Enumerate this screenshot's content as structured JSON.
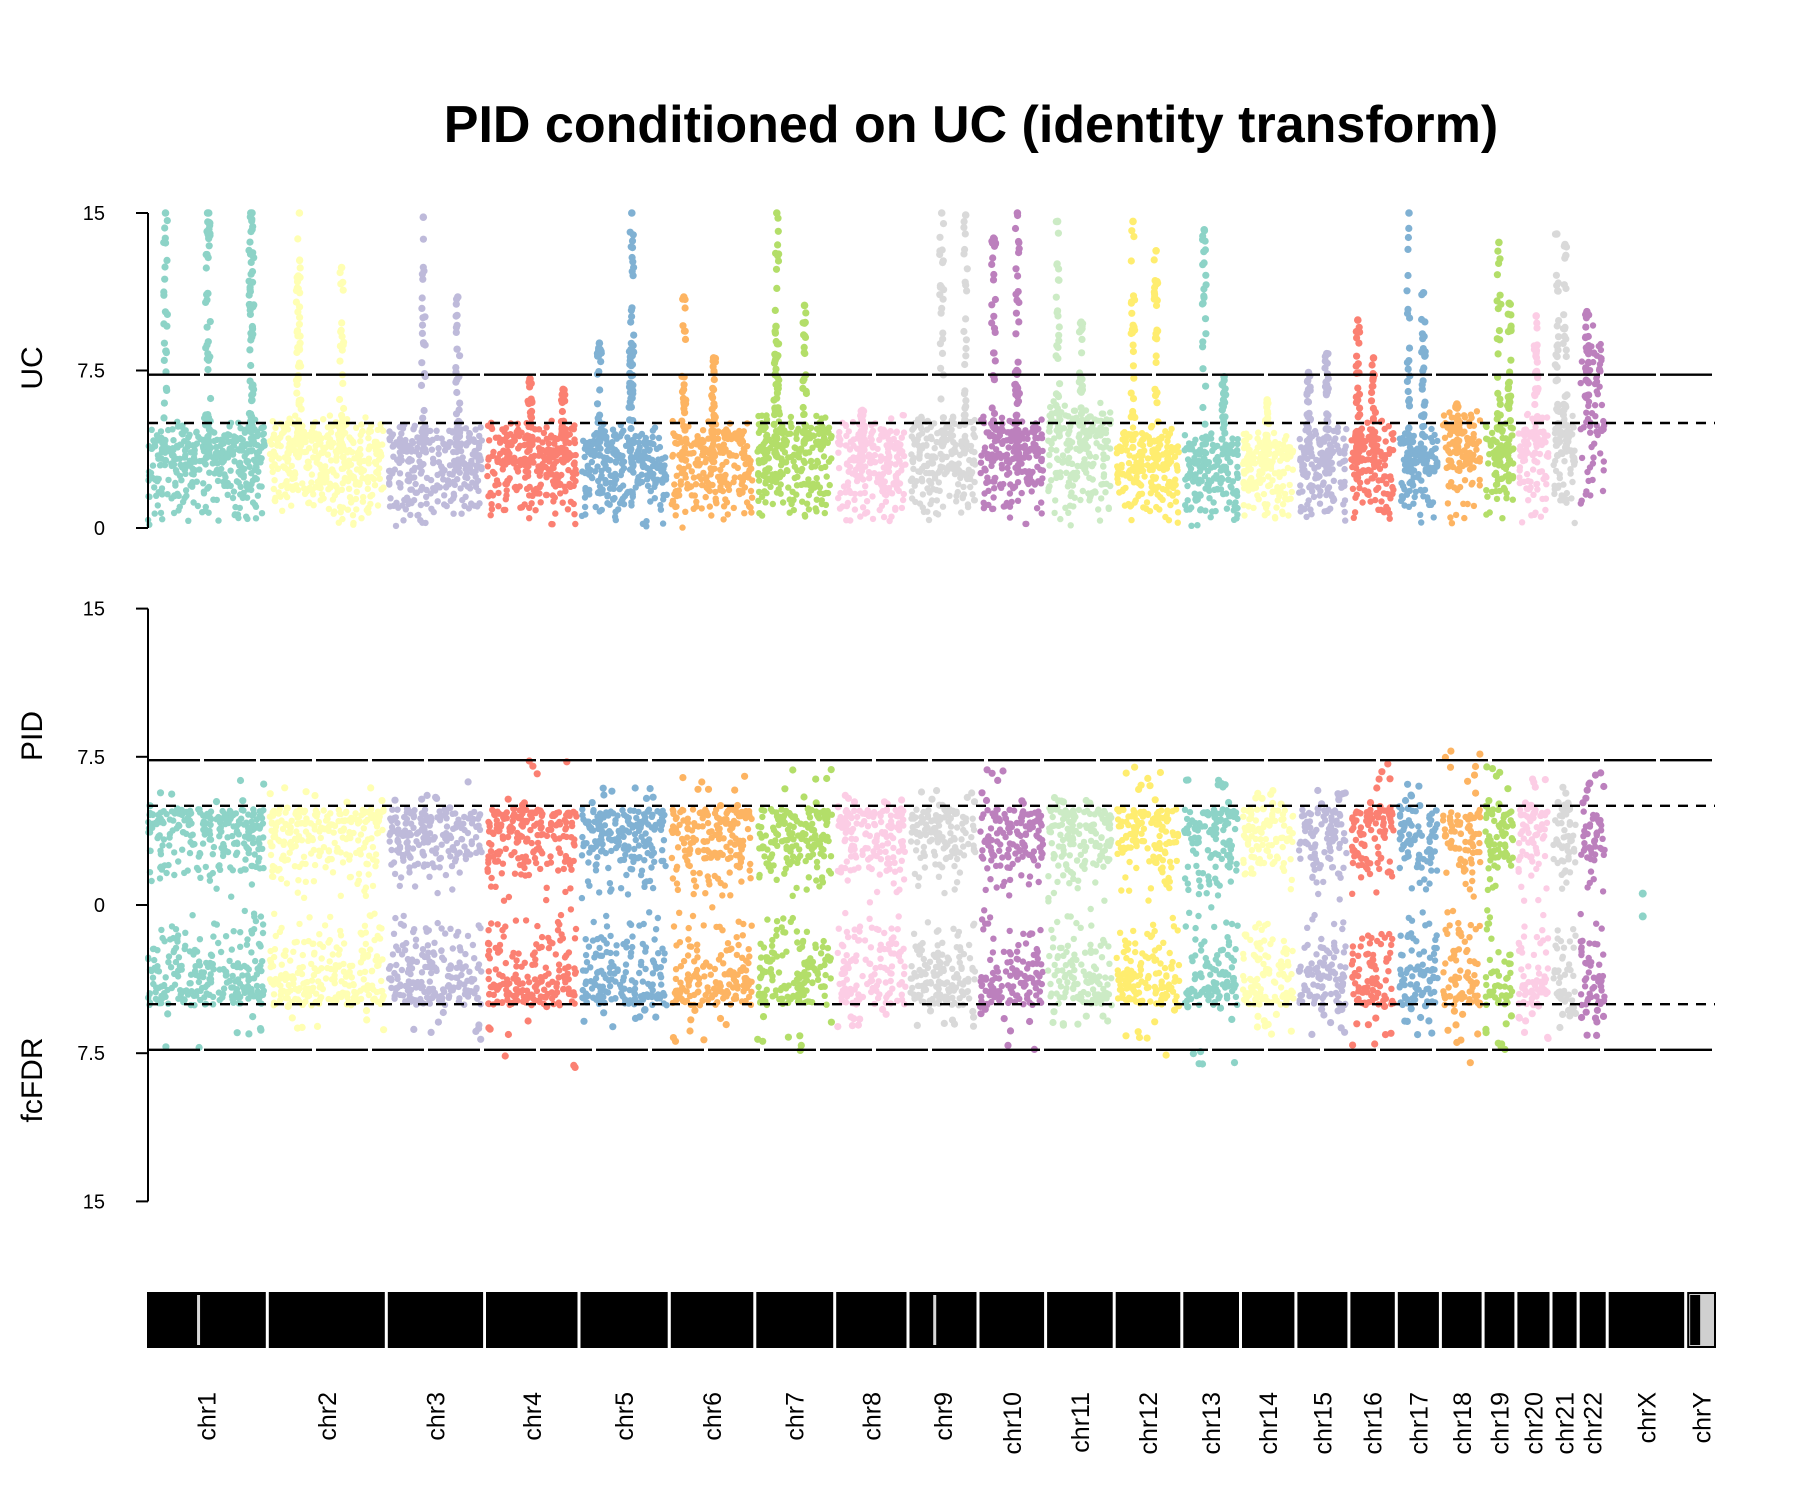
{
  "chart_data": {
    "type": "scatter",
    "title": "PID conditioned on UC (identity transform)",
    "panels": [
      {
        "name": "top",
        "ylabel": "UC",
        "ylim": [
          0,
          15
        ],
        "yticks": [
          "0",
          "7.5",
          "15"
        ],
        "hlines": [
          {
            "y": 7.3,
            "style": "solid"
          },
          {
            "y": 5,
            "style": "dashed"
          }
        ]
      },
      {
        "name": "bottom",
        "ylabels": [
          "PID",
          "fcFDR"
        ],
        "ylim": [
          -15,
          15
        ],
        "yticks": [
          "15",
          "7.5",
          "0",
          "7.5",
          "15"
        ],
        "hlines": [
          {
            "y": 7.3,
            "style": "solid"
          },
          {
            "y": 5,
            "style": "dashed"
          },
          {
            "y": -5,
            "style": "dashed"
          },
          {
            "y": -7.3,
            "style": "solid"
          }
        ]
      }
    ],
    "palette": [
      "#8dd3c7",
      "#ffffb3",
      "#bebada",
      "#fb8072",
      "#80b1d3",
      "#fdb462",
      "#b3de69",
      "#fccde5",
      "#d9d9d9",
      "#bc80bd",
      "#ccebc5",
      "#ffed6f"
    ],
    "chromosomes": [
      {
        "label": "chr1",
        "len": 248,
        "color": "#8dd3c7",
        "uc_base": 5.3,
        "uc_peaks": [
          15,
          15,
          15,
          15,
          15
        ],
        "pid_up": 5.5,
        "pid_down": 6.3
      },
      {
        "label": "chr2",
        "len": 242,
        "color": "#ffffb3",
        "uc_base": 5.5,
        "uc_peaks": [
          15,
          12.4,
          12
        ],
        "pid_up": 5.3,
        "pid_down": 5.8
      },
      {
        "label": "chr3",
        "len": 198,
        "color": "#bebada",
        "uc_base": 5.2,
        "uc_peaks": [
          14.8,
          11
        ],
        "pid_up": 5.4,
        "pid_down": 6.0
      },
      {
        "label": "chr4",
        "len": 190,
        "color": "#fb8072",
        "uc_base": 5.2,
        "uc_peaks": [
          7.1,
          6.6
        ],
        "pid_up": 7.4,
        "pid_down": 7.4
      },
      {
        "label": "chr5",
        "len": 181,
        "color": "#80b1d3",
        "uc_base": 5.1,
        "uc_peaks": [
          15,
          8.8,
          8.5
        ],
        "pid_up": 5.3,
        "pid_down": 5.6
      },
      {
        "label": "chr6",
        "len": 171,
        "color": "#fdb462",
        "uc_base": 5.3,
        "uc_peaks": [
          11,
          8.1
        ],
        "pid_up": 5.7,
        "pid_down": 6.1
      },
      {
        "label": "chr7",
        "len": 159,
        "color": "#b3de69",
        "uc_base": 5.6,
        "uc_peaks": [
          15,
          10.6,
          9.6
        ],
        "pid_up": 6.3,
        "pid_down": 6.6
      },
      {
        "label": "chr8",
        "len": 145,
        "color": "#fccde5",
        "uc_base": 5.4,
        "uc_peaks": [
          5.6
        ],
        "pid_up": 5.1,
        "pid_down": 5.4
      },
      {
        "label": "chr9",
        "len": 138,
        "color": "#d9d9d9",
        "uc_base": 5.6,
        "uc_peaks": [
          15,
          14.9
        ],
        "pid_up": 5.2,
        "pid_down": 5.5
      },
      {
        "label": "chr10",
        "len": 133,
        "color": "#bc80bd",
        "uc_base": 5.5,
        "uc_peaks": [
          15,
          13.8,
          7.5
        ],
        "pid_up": 6.2,
        "pid_down": 6.4
      },
      {
        "label": "chr11",
        "len": 135,
        "color": "#ccebc5",
        "uc_base": 6.2,
        "uc_peaks": [
          14.6,
          9.8
        ],
        "pid_up": 4.9,
        "pid_down": 5.5
      },
      {
        "label": "chr12",
        "len": 133,
        "color": "#ffed6f",
        "uc_base": 5.0,
        "uc_peaks": [
          14.6,
          13.2
        ],
        "pid_up": 6.3,
        "pid_down": 6.8
      },
      {
        "label": "chr13",
        "len": 114,
        "color": "#8dd3c7",
        "uc_base": 4.6,
        "uc_peaks": [
          14.2,
          7.2
        ],
        "pid_up": 6.6,
        "pid_down": 7.0
      },
      {
        "label": "chr14",
        "len": 107,
        "color": "#ffffb3",
        "uc_base": 4.7,
        "uc_peaks": [
          6.1
        ],
        "pid_up": 5.3,
        "pid_down": 5.8
      },
      {
        "label": "chr15",
        "len": 102,
        "color": "#bebada",
        "uc_base": 5.0,
        "uc_peaks": [
          8.3,
          7.4
        ],
        "pid_up": 5.1,
        "pid_down": 5.7
      },
      {
        "label": "chr16",
        "len": 90,
        "color": "#fb8072",
        "uc_base": 5.3,
        "uc_peaks": [
          9.9,
          8.1
        ],
        "pid_up": 6.2,
        "pid_down": 6.2
      },
      {
        "label": "chr17",
        "len": 83,
        "color": "#80b1d3",
        "uc_base": 5.0,
        "uc_peaks": [
          15,
          11.2
        ],
        "pid_up": 5.4,
        "pid_down": 5.7
      },
      {
        "label": "chr18",
        "len": 80,
        "color": "#fdb462",
        "uc_base": 5.9,
        "uc_peaks": [
          5.9
        ],
        "pid_up": 6.9,
        "pid_down": 7.0
      },
      {
        "label": "chr19",
        "len": 59,
        "color": "#b3de69",
        "uc_base": 5.3,
        "uc_peaks": [
          13.6,
          10.7
        ],
        "pid_up": 6.2,
        "pid_down": 6.5
      },
      {
        "label": "chr20",
        "len": 64,
        "color": "#fccde5",
        "uc_base": 5.6,
        "uc_peaks": [
          10.1
        ],
        "pid_up": 6.2,
        "pid_down": 6.0
      },
      {
        "label": "chr21",
        "len": 47,
        "color": "#d9d9d9",
        "uc_base": 5.7,
        "uc_peaks": [
          14,
          13.5
        ],
        "pid_up": 5.4,
        "pid_down": 5.6
      },
      {
        "label": "chr22",
        "len": 51,
        "color": "#bc80bd",
        "uc_base": 10.3,
        "uc_peaks": [
          10.3
        ],
        "pid_up": 6.2,
        "pid_down": 6.0
      },
      {
        "label": "chrX",
        "len": 156,
        "color": "#8dd3c7",
        "uc_base": 0,
        "uc_peaks": [],
        "pid_up": 0.5,
        "pid_down": 0.5
      },
      {
        "label": "chrY",
        "len": 57,
        "color": "#ffffb3",
        "uc_base": 0,
        "uc_peaks": [],
        "pid_up": 0,
        "pid_down": 0
      }
    ]
  }
}
